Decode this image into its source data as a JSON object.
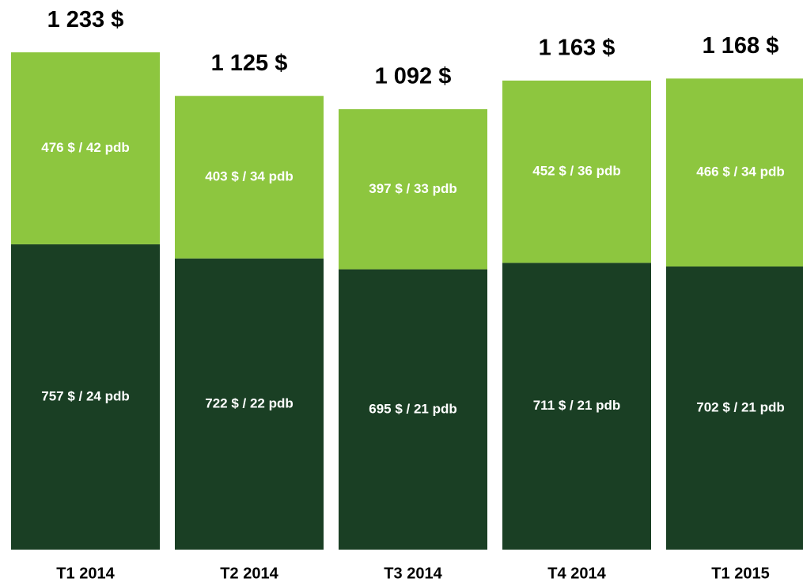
{
  "chart_data": {
    "type": "bar",
    "stacked": true,
    "categories": [
      "T1 2014",
      "T2 2014",
      "T3 2014",
      "T4 2014",
      "T1 2015"
    ],
    "series": [
      {
        "color": "#1a3f24",
        "values": [
          757,
          722,
          695,
          711,
          702
        ],
        "value_labels": [
          "757 $ / 24 pdb",
          "722 $ / 22 pdb",
          "695 $ / 21 pdb",
          "711 $ / 21 pdb",
          "702 $ / 21 pdb"
        ]
      },
      {
        "color": "#8dc63f",
        "values": [
          476,
          403,
          397,
          452,
          466
        ],
        "value_labels": [
          "476 $ / 42 pdb",
          "403 $ / 34 pdb",
          "397 $ / 33 pdb",
          "452 $ / 36 pdb",
          "466 $ / 34 pdb"
        ]
      }
    ],
    "totals": {
      "values": [
        1233,
        1125,
        1092,
        1163,
        1168
      ],
      "value_labels": [
        "1 233 $",
        "1 125 $",
        "1 092 $",
        "1 163 $",
        "1 168 $"
      ]
    },
    "ylim": [
      0,
      1300
    ]
  }
}
